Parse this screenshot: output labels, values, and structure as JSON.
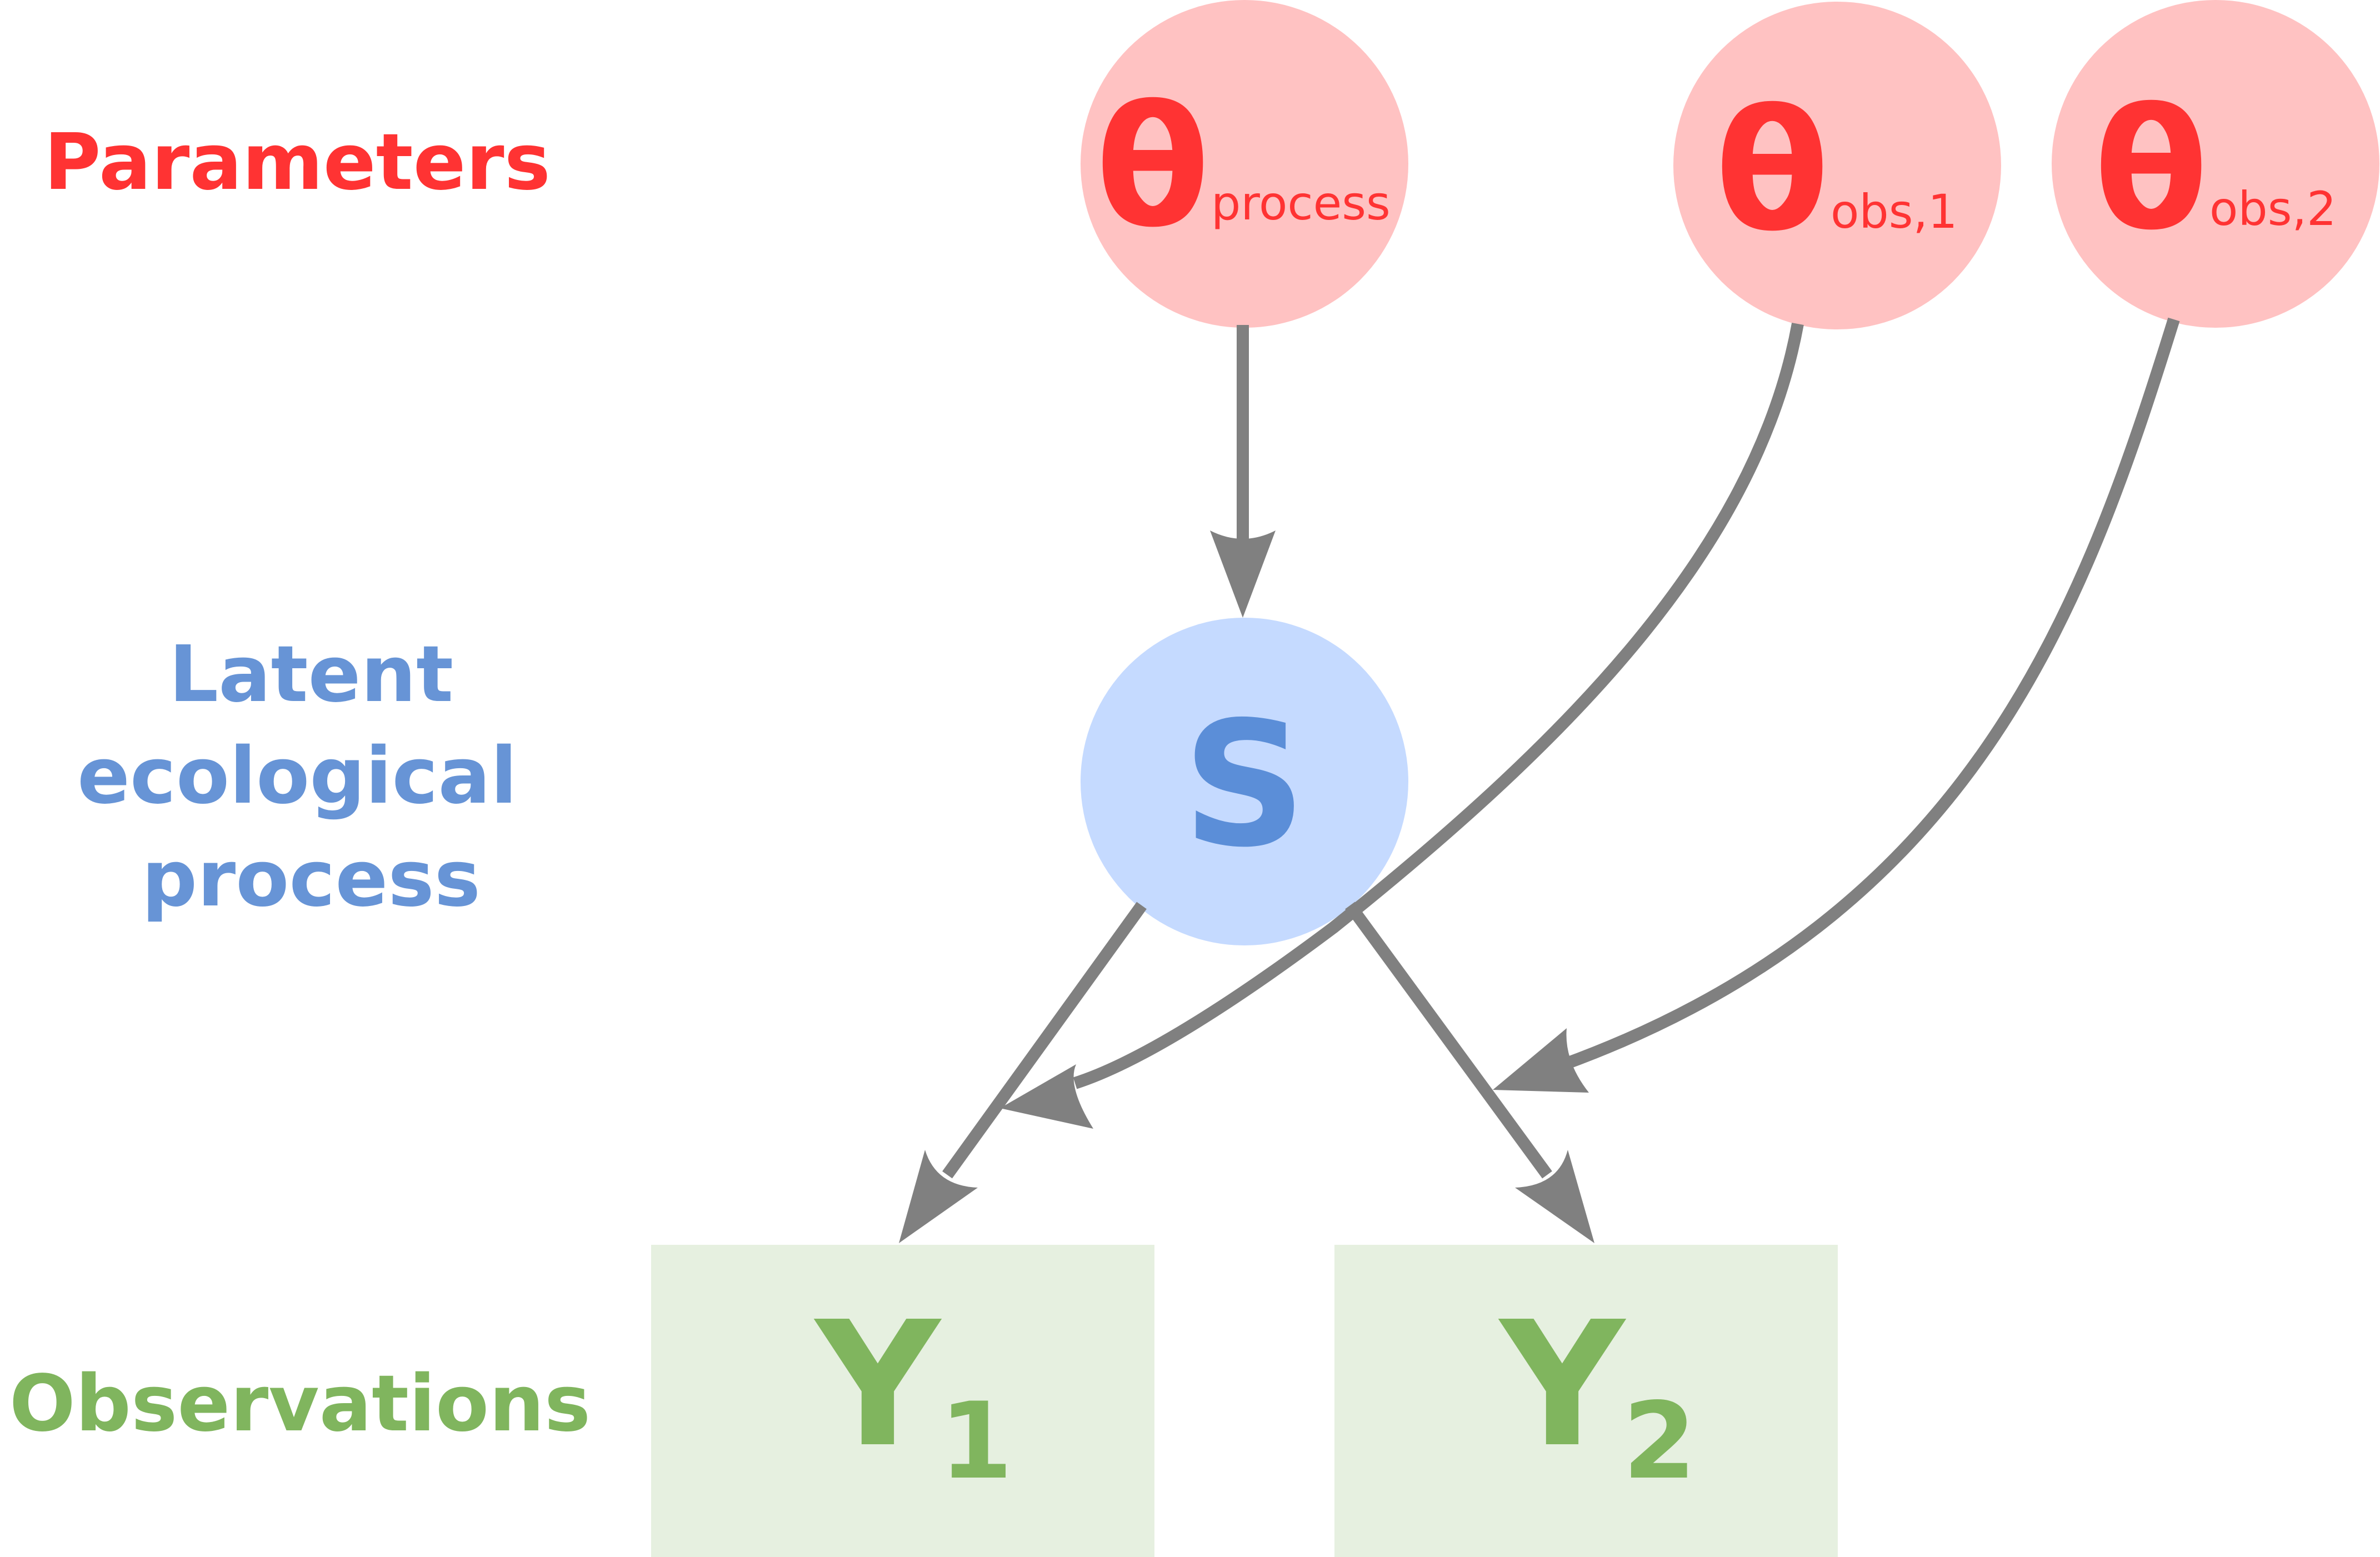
{
  "rows": {
    "parameters": "Parameters",
    "latent": [
      "Latent",
      "ecological",
      "process"
    ],
    "observations": "Observations"
  },
  "nodes": {
    "theta_process": {
      "symbol": "θ",
      "subscript": "process"
    },
    "theta_obs1": {
      "symbol": "θ",
      "subscript": "obs,1"
    },
    "theta_obs2": {
      "symbol": "θ",
      "subscript": "obs,2"
    },
    "latent_state": {
      "symbol": "S"
    },
    "y1": {
      "symbol": "Y",
      "subscript": "1"
    },
    "y2": {
      "symbol": "Y",
      "subscript": "2"
    }
  },
  "edges": [
    {
      "from": "theta_process",
      "to": "latent_state"
    },
    {
      "from": "theta_obs1",
      "to": "y1"
    },
    {
      "from": "theta_obs2",
      "to": "y2"
    },
    {
      "from": "latent_state",
      "to": "y1"
    },
    {
      "from": "latent_state",
      "to": "y2"
    }
  ],
  "colors": {
    "parameter_text": "#ff3333",
    "parameter_fill": "#ffc2c2",
    "latent_text": "#5b8ed8",
    "latent_label": "#6794d6",
    "latent_fill": "#c5daff",
    "observation_text": "#80b55e",
    "observation_fill": "#e6f0e0",
    "edge": "#808080"
  }
}
